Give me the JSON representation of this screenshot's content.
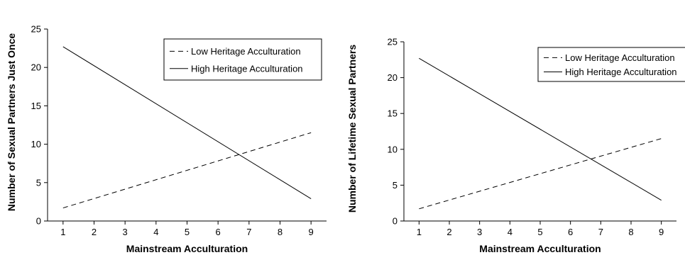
{
  "chart_data": [
    {
      "type": "line",
      "title": "",
      "xlabel": "Mainstream Acculturation",
      "ylabel": "Number of Sexual Partners Just Once",
      "x": [
        1,
        9
      ],
      "xticks": [
        1,
        2,
        3,
        4,
        5,
        6,
        7,
        8,
        9
      ],
      "yticks": [
        0,
        5,
        10,
        15,
        20,
        25
      ],
      "xlim": [
        0.5,
        9.5
      ],
      "ylim": [
        0,
        25
      ],
      "grid": false,
      "legend_position": "top-right",
      "series": [
        {
          "name": "Low Heritage Acculturation",
          "style": "dashed",
          "color": "#000000",
          "values": [
            1.7,
            11.5
          ]
        },
        {
          "name": "High Heritage Acculturation",
          "style": "solid",
          "color": "#000000",
          "values": [
            22.7,
            2.9
          ]
        }
      ]
    },
    {
      "type": "line",
      "title": "",
      "xlabel": "Mainstream Acculturation",
      "ylabel": "Number of Lifetime Sexual Partners",
      "x": [
        1,
        9
      ],
      "xticks": [
        1,
        2,
        3,
        4,
        5,
        6,
        7,
        8,
        9
      ],
      "yticks": [
        0,
        5,
        10,
        15,
        20,
        25
      ],
      "xlim": [
        0.5,
        9.5
      ],
      "ylim": [
        0,
        25
      ],
      "grid": false,
      "legend_position": "top-right",
      "series": [
        {
          "name": "Low Heritage Acculturation",
          "style": "dashed",
          "color": "#000000",
          "values": [
            1.7,
            11.5
          ]
        },
        {
          "name": "High Heritage Acculturation",
          "style": "solid",
          "color": "#000000",
          "values": [
            22.7,
            2.9
          ]
        }
      ]
    }
  ]
}
